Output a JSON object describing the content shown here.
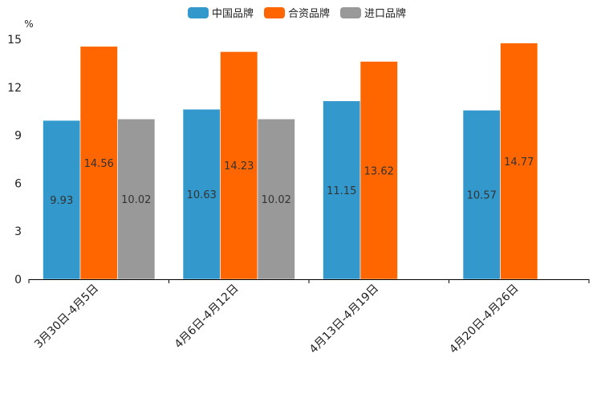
{
  "chart_data": {
    "type": "bar",
    "title": "",
    "xlabel": "",
    "ylabel": "%",
    "ylim": [
      0,
      15
    ],
    "yticks": [
      0,
      3,
      6,
      9,
      12,
      15
    ],
    "grid": false,
    "legend_position": "top-center",
    "categories": [
      "3月30日-4月5日",
      "4月6日-4月12日",
      "4月13日-4月19日",
      "4月20日-4月26日"
    ],
    "series": [
      {
        "name": "中国品牌",
        "color": "#3399cc",
        "values": [
          9.93,
          10.63,
          11.15,
          10.57
        ]
      },
      {
        "name": "合资品牌",
        "color": "#ff6600",
        "values": [
          14.56,
          14.23,
          13.62,
          14.77
        ]
      },
      {
        "name": "进口品牌",
        "color": "#999999",
        "values": [
          10.02,
          10.02,
          null,
          null
        ]
      }
    ]
  }
}
